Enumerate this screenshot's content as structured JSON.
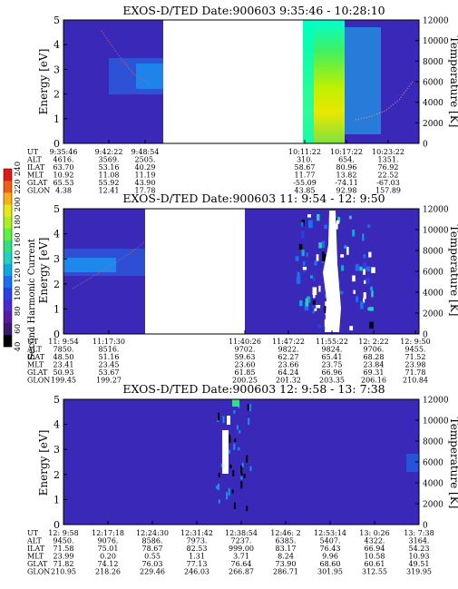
{
  "colorbar": {
    "label": "Second Harmonic Current",
    "ticks": [
      "40",
      "60",
      "80",
      "100",
      "120",
      "140",
      "160",
      "180",
      "200",
      "220",
      "240"
    ],
    "colors": [
      "#000000",
      "#3a1a6e",
      "#5a1aa0",
      "#4a2ad0",
      "#2a40e8",
      "#1a70f0",
      "#10a8e0",
      "#20d0c0",
      "#30e080",
      "#60f040",
      "#a8f020",
      "#e8e818",
      "#f8b018",
      "#f06010",
      "#e01818"
    ]
  },
  "chart_data": [
    {
      "type": "heatmap",
      "title": "EXOS-D/TED    Date:900603   9:35:46 - 10:28:10",
      "ylabel": "Energy [eV]",
      "ylabel_right": "Temperature [K]",
      "ylim": [
        0,
        5
      ],
      "yticks": [
        "0",
        "1",
        "2",
        "3",
        "4",
        "5"
      ],
      "ylim_right": [
        0,
        12000
      ],
      "yticks_right": [
        "0",
        "2000",
        "4000",
        "6000",
        "8000",
        "10000",
        "12000"
      ],
      "row_labels": [
        "UT",
        "ALT",
        "ILAT",
        "MLT",
        "GLAT",
        "GLON"
      ],
      "columns": [
        {
          "values": [
            "9:35:46",
            "4616.",
            "63.70",
            "10.92",
            "65.53",
            "4.38"
          ]
        },
        {
          "values": [
            "9:42:22",
            "3569.",
            "53.16",
            "11.08",
            "55.92",
            "12.41"
          ]
        },
        {
          "values": [
            "9:48:54",
            "2505.",
            "40.29",
            "11.19",
            "43.90",
            "17.78"
          ]
        },
        {
          "values": [
            "10:11:22",
            "310.",
            "58.67",
            "11.77",
            "-55.09",
            "43.85"
          ]
        },
        {
          "values": [
            "10:17:22",
            "654.",
            "80.96",
            "13.82",
            "-74.11",
            "92.98"
          ]
        },
        {
          "values": [
            "10:23:22",
            "1351.",
            "76.92",
            "22.52",
            "-67.03",
            "157.89"
          ]
        }
      ],
      "data_gap": "9:48:54 - 10:11:22"
    },
    {
      "type": "heatmap",
      "title": "EXOS-D/TED    Date:900603  11: 9:54 - 12: 9:50",
      "ylabel": "Energy [eV]",
      "ylabel_right": "Temperature [K]",
      "ylim": [
        0,
        5
      ],
      "yticks": [
        "0",
        "1",
        "2",
        "3",
        "4",
        "5"
      ],
      "ylim_right": [
        0,
        12000
      ],
      "yticks_right": [
        "0",
        "2000",
        "4000",
        "6000",
        "8000",
        "10000",
        "12000"
      ],
      "row_labels": [
        "UT",
        "ALT",
        "ILAT",
        "MLT",
        "GLAT",
        "GLON"
      ],
      "columns": [
        {
          "values": [
            "11: 9:54",
            "7850.",
            "48.50",
            "23.41",
            "50.93",
            "199.45"
          ]
        },
        {
          "values": [
            "11:17:30",
            "8516.",
            "51.16",
            "23.45",
            "53.67",
            "199.27"
          ]
        },
        {
          "values": [
            "11:40:26",
            "9702.",
            "59.63",
            "23.60",
            "61.85",
            "200.25"
          ]
        },
        {
          "values": [
            "11:47:22",
            "9822.",
            "62.27",
            "23.66",
            "64.24",
            "201.32"
          ]
        },
        {
          "values": [
            "11:55:22",
            "9824.",
            "65.41",
            "23.75",
            "66.96",
            "203.35"
          ]
        },
        {
          "values": [
            "12: 2:22",
            "9706.",
            "68.28",
            "23.84",
            "69.31",
            "206.16"
          ]
        },
        {
          "values": [
            "12: 9:50",
            "9455.",
            "71.52",
            "23.98",
            "71.78",
            "210.84"
          ]
        }
      ],
      "data_gap": "11:17:30 - 11:40:26"
    },
    {
      "type": "heatmap",
      "title": "EXOS-D/TED    Date:900603  12: 9:58 - 13: 7:38",
      "ylabel": "Energy [eV]",
      "ylabel_right": "Temperature [K]",
      "ylim": [
        0,
        5
      ],
      "yticks": [
        "0",
        "1",
        "2",
        "3",
        "4",
        "5"
      ],
      "ylim_right": [
        0,
        12000
      ],
      "yticks_right": [
        "0",
        "2000",
        "4000",
        "6000",
        "8000",
        "10000",
        "12000"
      ],
      "row_labels": [
        "UT",
        "ALT",
        "ILAT",
        "MLT",
        "GLAT",
        "GLON"
      ],
      "columns": [
        {
          "values": [
            "12: 9:58",
            "9450.",
            "71.58",
            "23.99",
            "71.82",
            "210.95"
          ]
        },
        {
          "values": [
            "12:17:18",
            "9076.",
            "75.01",
            "0.20",
            "74.12",
            "218.26"
          ]
        },
        {
          "values": [
            "12:24:30",
            "8586.",
            "78.67",
            "0.55",
            "76.03",
            "229.46"
          ]
        },
        {
          "values": [
            "12:31:42",
            "7973.",
            "82.53",
            "1.31",
            "77.13",
            "246.03"
          ]
        },
        {
          "values": [
            "12:38:54",
            "7237.",
            "999.00",
            "3.71",
            "76.64",
            "266.87"
          ]
        },
        {
          "values": [
            "12:46: 2",
            "6385.",
            "83.17",
            "8.24",
            "73.90",
            "286.71"
          ]
        },
        {
          "values": [
            "12:53:14",
            "5407.",
            "76.43",
            "9.96",
            "68.60",
            "301.95"
          ]
        },
        {
          "values": [
            "13: 0:26",
            "4322.",
            "66.94",
            "10.58",
            "60.61",
            "312.55"
          ]
        },
        {
          "values": [
            "13: 7:38",
            "3164.",
            "54.23",
            "10.93",
            "49.51",
            "319.95"
          ]
        }
      ]
    }
  ]
}
